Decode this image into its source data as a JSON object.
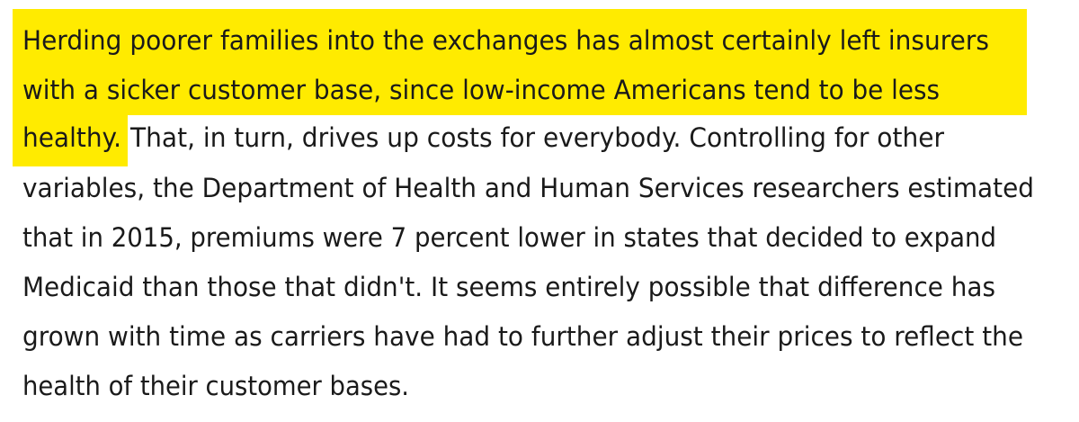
{
  "paragraph": {
    "highlighted": [
      "Herding poorer families into the exchanges has almost certainly left insurers",
      "with a sicker customer base, since low-income Americans tend to be less",
      "healthy."
    ],
    "plain": [
      "That, in turn, drives up costs for everybody. Controlling for other",
      "variables, the Department of Health and Human Services researchers estimated",
      "that in 2015, premiums were 7 percent lower in states that decided to expand",
      "Medicaid than those that didn't. It seems entirely possible that difference has",
      "grown with time as carriers have had to further adjust their prices to reflect the",
      "health of their customer bases."
    ]
  }
}
